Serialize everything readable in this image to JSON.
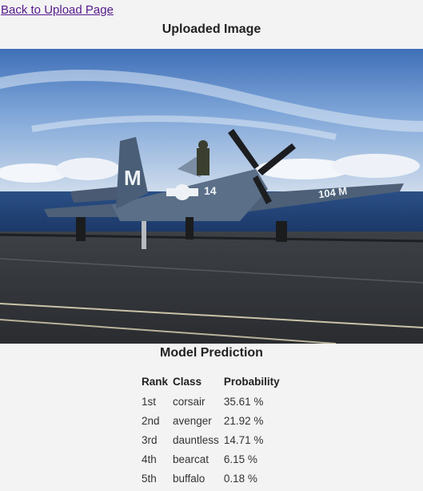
{
  "nav": {
    "back_label": "Back to Upload Page"
  },
  "uploaded": {
    "heading": "Uploaded Image",
    "image_alt": "F4U Corsair aircraft on carrier deck",
    "tail_code_left": "M",
    "tail_code_right": "14",
    "wing_code": "104 M"
  },
  "prediction": {
    "heading": "Model Prediction",
    "columns": [
      "Rank",
      "Class",
      "Probability"
    ],
    "rows": [
      {
        "rank": "1st",
        "class": "corsair",
        "probability": "35.61 %"
      },
      {
        "rank": "2nd",
        "class": "avenger",
        "probability": "21.92 %"
      },
      {
        "rank": "3rd",
        "class": "dauntless",
        "probability": "14.71 %"
      },
      {
        "rank": "4th",
        "class": "bearcat",
        "probability": "6.15 %"
      },
      {
        "rank": "5th",
        "class": "buffalo",
        "probability": "0.18 %"
      }
    ]
  }
}
